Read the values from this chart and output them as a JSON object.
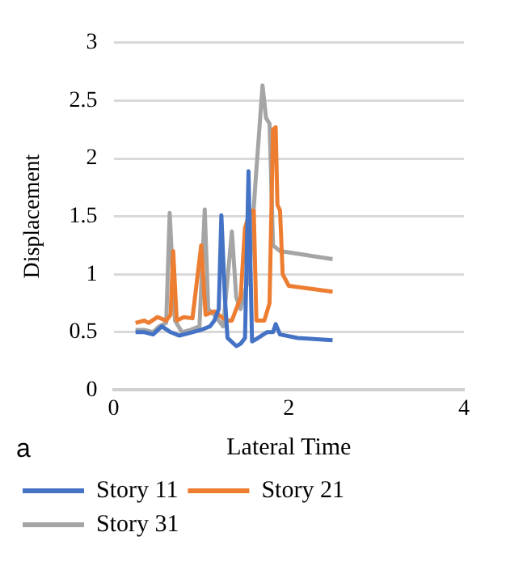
{
  "chart_data": {
    "type": "line",
    "xlabel": "Lateral Time",
    "ylabel": "Displacement",
    "annotations": [
      "a"
    ],
    "xlim": [
      0,
      4
    ],
    "xticks": [
      0,
      2,
      4
    ],
    "ylim": [
      0,
      3
    ],
    "yticks": [
      0,
      0.5,
      1,
      1.5,
      2,
      2.5,
      3
    ],
    "grid": "y",
    "legend": "bottom",
    "marker": "none",
    "series": [
      {
        "name": "Story 11",
        "color": "#4472c4",
        "x": [
          0.25,
          0.35,
          0.45,
          0.55,
          0.65,
          0.75,
          0.9,
          1.0,
          1.1,
          1.15,
          1.2,
          1.23,
          1.27,
          1.3,
          1.4,
          1.45,
          1.5,
          1.54,
          1.58,
          1.65,
          1.75,
          1.82,
          1.85,
          1.9,
          2.1,
          2.5
        ],
        "values": [
          0.5,
          0.5,
          0.48,
          0.55,
          0.5,
          0.47,
          0.5,
          0.52,
          0.55,
          0.6,
          0.7,
          1.51,
          0.8,
          0.45,
          0.38,
          0.4,
          0.45,
          1.89,
          0.42,
          0.45,
          0.5,
          0.5,
          0.57,
          0.48,
          0.45,
          0.43
        ]
      },
      {
        "name": "Story 21",
        "color": "#ed7d31",
        "x": [
          0.25,
          0.35,
          0.4,
          0.5,
          0.6,
          0.65,
          0.68,
          0.72,
          0.8,
          0.9,
          1.0,
          1.05,
          1.15,
          1.25,
          1.3,
          1.35,
          1.45,
          1.5,
          1.56,
          1.6,
          1.63,
          1.72,
          1.78,
          1.82,
          1.85,
          1.87,
          1.9,
          1.93,
          2.0,
          2.5
        ],
        "values": [
          0.58,
          0.6,
          0.58,
          0.63,
          0.6,
          0.65,
          1.2,
          0.6,
          0.63,
          0.62,
          1.25,
          0.65,
          0.68,
          0.62,
          0.6,
          0.6,
          0.8,
          1.4,
          1.55,
          1.55,
          0.6,
          0.6,
          0.75,
          2.25,
          2.27,
          1.6,
          1.55,
          1.0,
          0.9,
          0.85
        ]
      },
      {
        "name": "Story 31",
        "color": "#a5a5a5",
        "x": [
          0.25,
          0.35,
          0.45,
          0.52,
          0.6,
          0.64,
          0.7,
          0.78,
          0.88,
          0.98,
          1.04,
          1.08,
          1.15,
          1.25,
          1.35,
          1.4,
          1.45,
          1.5,
          1.55,
          1.62,
          1.7,
          1.74,
          1.78,
          1.82,
          1.9,
          2.5
        ],
        "values": [
          0.52,
          0.52,
          0.5,
          0.55,
          0.58,
          1.53,
          0.6,
          0.5,
          0.52,
          0.55,
          1.56,
          0.7,
          0.65,
          0.55,
          1.37,
          0.8,
          0.7,
          0.85,
          1.0,
          1.8,
          2.63,
          2.35,
          2.3,
          1.25,
          1.2,
          1.13
        ]
      }
    ]
  }
}
